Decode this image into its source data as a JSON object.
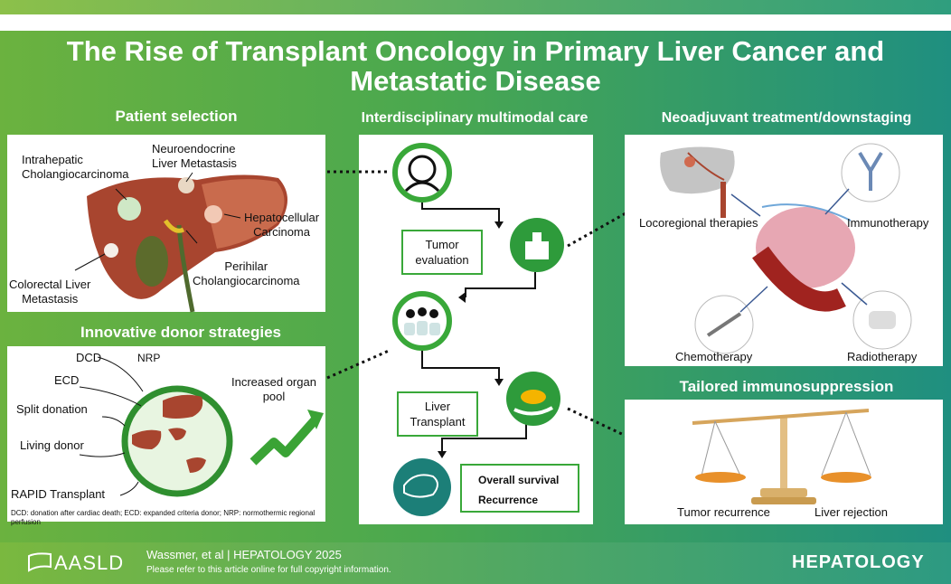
{
  "title": "The Rise of Transplant Oncology in Primary Liver Cancer and Metastatic Disease",
  "sections": {
    "patient_selection": "Patient selection",
    "multimodal": "Interdisciplinary multimodal care",
    "neoadjuvant": "Neoadjuvant treatment/downstaging",
    "donor": "Innovative donor strategies",
    "immunosuppression": "Tailored immunosuppression"
  },
  "liver_labels": {
    "ihc": "Intrahepatic\nCholangiocarcinoma",
    "net": "Neuroendocrine\nLiver Metastasis",
    "hcc": "Hepatocellular\nCarcinoma",
    "crc": "Colorectal Liver\nMetastasis",
    "phc": "Perihilar\nCholangiocarcinoma"
  },
  "donor": {
    "dcd": "DCD",
    "nrp": "NRP",
    "ecd": "ECD",
    "split": "Split donation",
    "living": "Living donor",
    "rapid": "RAPID Transplant",
    "pool": "Increased organ\npool",
    "footnote": "DCD: donation after cardiac death; ECD: expanded criteria donor; NRP: normothermic regional perfusion"
  },
  "flow": {
    "tumor_eval": "Tumor\nevaluation",
    "liver_tx": "Liver\nTransplant",
    "overall_survival": "Overall survival",
    "recurrence": "Recurrence"
  },
  "neo": {
    "loco": "Locoregional therapies",
    "immuno": "Immunotherapy",
    "chemo": "Chemotherapy",
    "radio": "Radiotherapy"
  },
  "scale": {
    "left": "Tumor recurrence",
    "right": "Liver rejection"
  },
  "footer": {
    "logo": "AASLD",
    "citation": "Wassmer, et al  |  HEPATOLOGY 2025",
    "note": "Please refer to this article online for full copyright information.",
    "journal": "HEPATOLOGY"
  },
  "colors": {
    "accent_green": "#39a839",
    "dark_teal": "#1f8f80",
    "liver": "#a8452f"
  }
}
